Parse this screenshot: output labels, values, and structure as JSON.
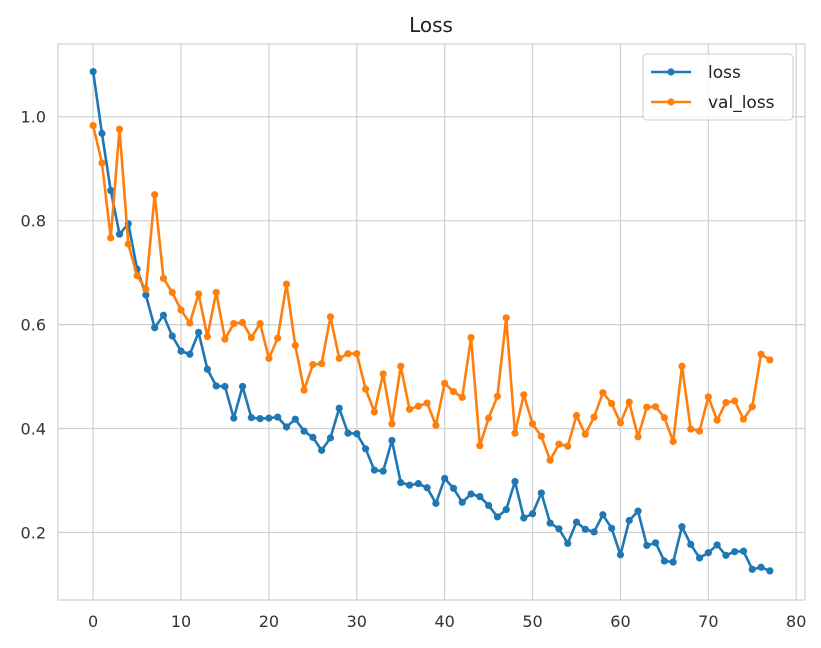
{
  "chart_data": {
    "type": "line",
    "title": "Loss",
    "xlabel": "",
    "ylabel": "",
    "xlim": [
      -4,
      81
    ],
    "ylim": [
      0.07,
      1.14
    ],
    "x_ticks": [
      0,
      10,
      20,
      30,
      40,
      50,
      60,
      70,
      80
    ],
    "y_ticks": [
      0.2,
      0.4,
      0.6,
      0.8,
      1.0
    ],
    "x_tick_labels": [
      "0",
      "10",
      "20",
      "30",
      "40",
      "50",
      "60",
      "70",
      "80"
    ],
    "y_tick_labels": [
      "0.2",
      "0.4",
      "0.6",
      "0.8",
      "1.0"
    ],
    "grid": true,
    "legend_position": "top-right",
    "series": [
      {
        "name": "loss",
        "color": "#1f77b4",
        "values": [
          1.087,
          0.968,
          0.858,
          0.774,
          0.794,
          0.707,
          0.657,
          0.594,
          0.618,
          0.578,
          0.549,
          0.543,
          0.585,
          0.514,
          0.482,
          0.481,
          0.42,
          0.481,
          0.421,
          0.419,
          0.42,
          0.422,
          0.403,
          0.418,
          0.395,
          0.383,
          0.358,
          0.382,
          0.439,
          0.391,
          0.39,
          0.361,
          0.32,
          0.318,
          0.377,
          0.296,
          0.291,
          0.294,
          0.286,
          0.256,
          0.304,
          0.285,
          0.258,
          0.274,
          0.269,
          0.252,
          0.23,
          0.244,
          0.298,
          0.228,
          0.236,
          0.276,
          0.218,
          0.207,
          0.179,
          0.22,
          0.206,
          0.201,
          0.234,
          0.208,
          0.157,
          0.223,
          0.241,
          0.175,
          0.18,
          0.145,
          0.143,
          0.211,
          0.177,
          0.151,
          0.161,
          0.176,
          0.156,
          0.163,
          0.164,
          0.129,
          0.133,
          0.126
        ]
      },
      {
        "name": "val_loss",
        "color": "#ff7f0e",
        "values": [
          0.983,
          0.911,
          0.767,
          0.976,
          0.755,
          0.694,
          0.668,
          0.85,
          0.689,
          0.662,
          0.628,
          0.603,
          0.659,
          0.577,
          0.662,
          0.572,
          0.602,
          0.604,
          0.575,
          0.602,
          0.535,
          0.574,
          0.678,
          0.56,
          0.474,
          0.523,
          0.525,
          0.615,
          0.535,
          0.544,
          0.544,
          0.476,
          0.432,
          0.505,
          0.409,
          0.52,
          0.437,
          0.443,
          0.449,
          0.406,
          0.487,
          0.471,
          0.46,
          0.575,
          0.367,
          0.42,
          0.462,
          0.613,
          0.391,
          0.465,
          0.409,
          0.385,
          0.339,
          0.37,
          0.366,
          0.425,
          0.389,
          0.422,
          0.469,
          0.448,
          0.411,
          0.451,
          0.384,
          0.441,
          0.442,
          0.421,
          0.375,
          0.52,
          0.399,
          0.395,
          0.461,
          0.416,
          0.45,
          0.453,
          0.418,
          0.442,
          0.543,
          0.532
        ]
      }
    ]
  }
}
